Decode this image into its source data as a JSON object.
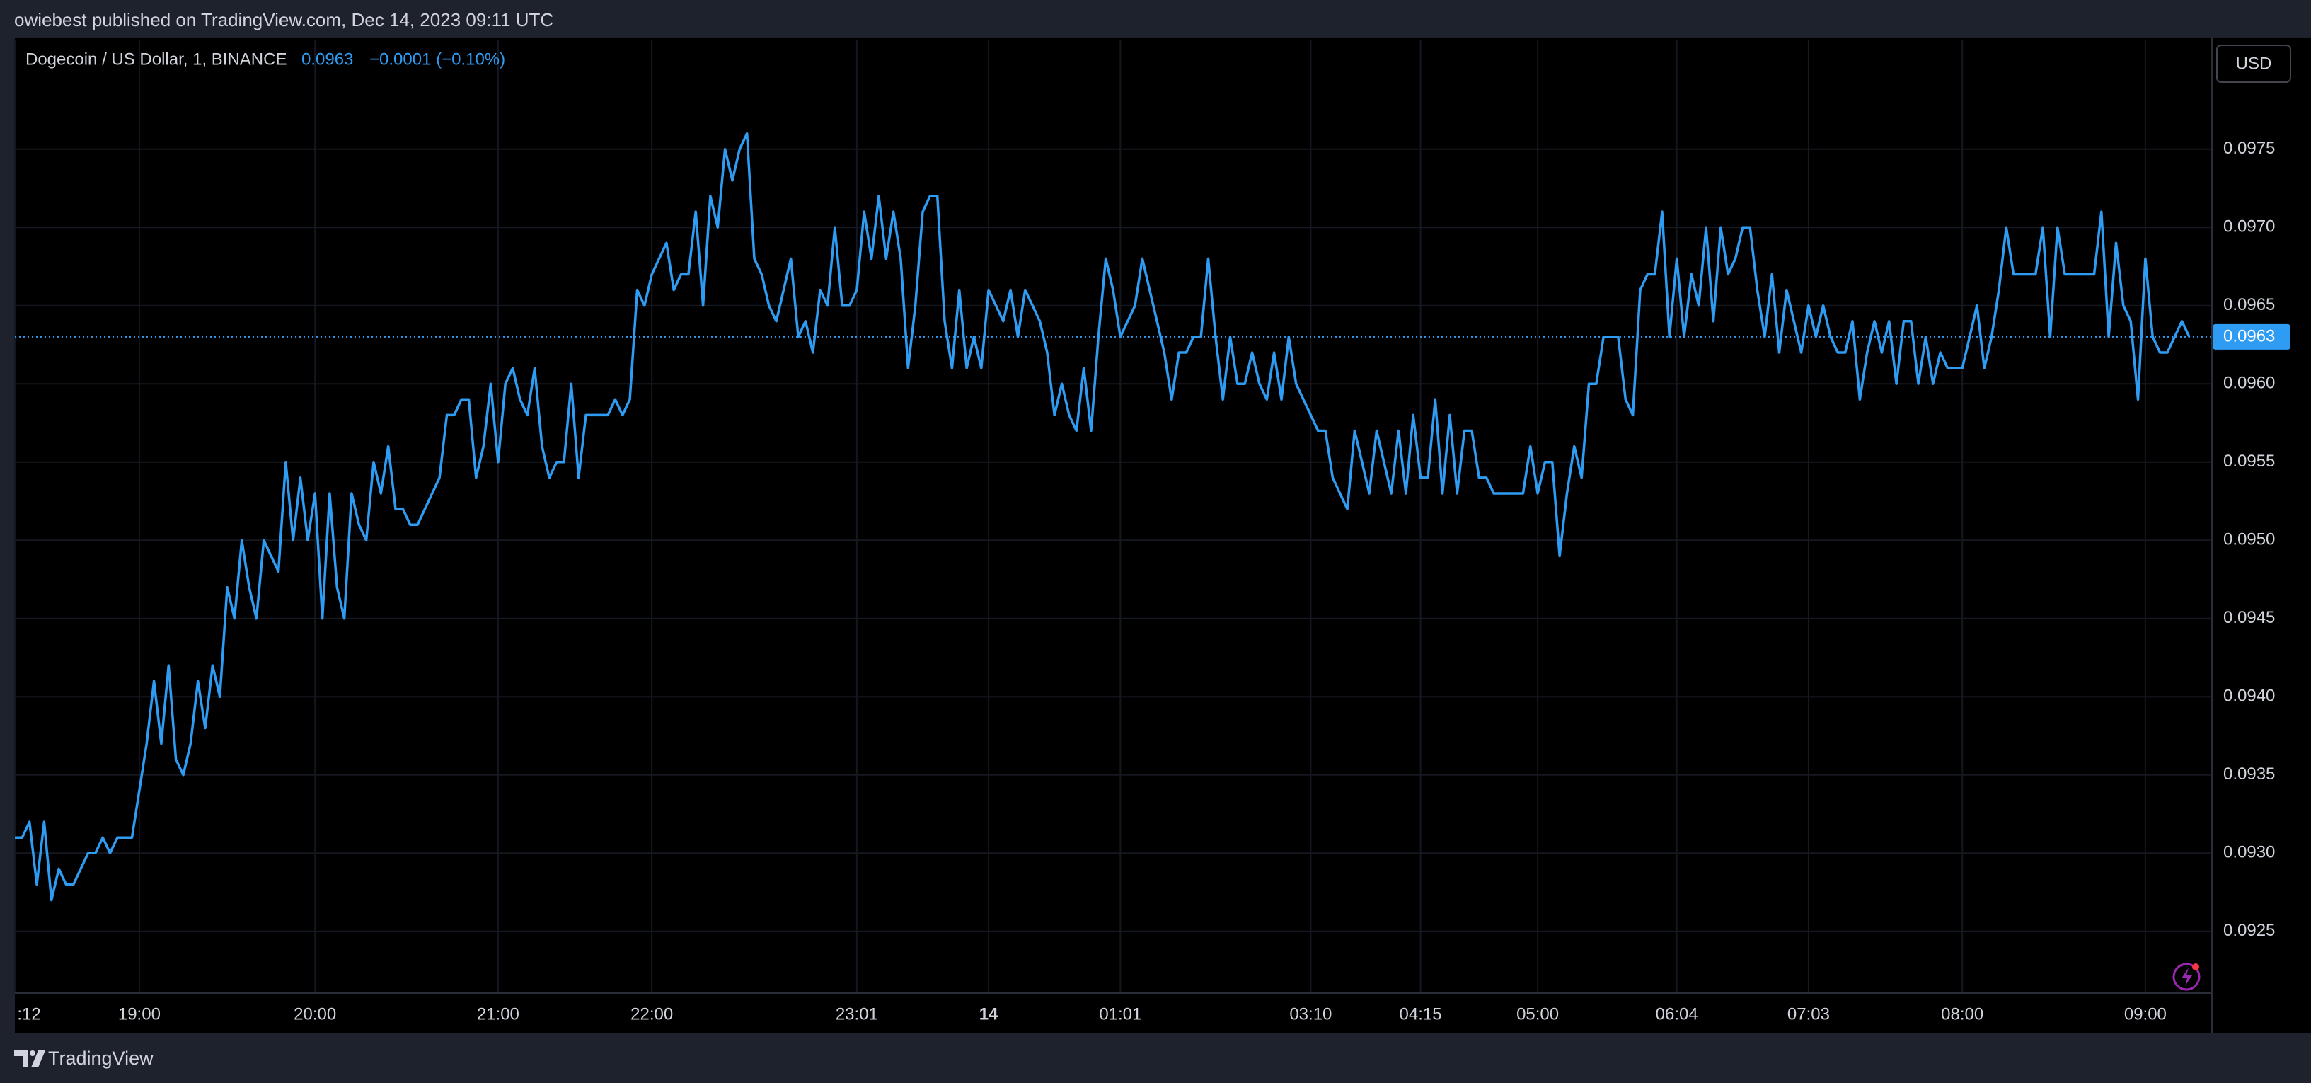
{
  "header": {
    "text": "owiebest published on TradingView.com, Dec 14, 2023 09:11 UTC"
  },
  "footer": {
    "brand": "TradingView"
  },
  "chart_data": {
    "type": "line",
    "title": "Dogecoin / US Dollar, 1, BINANCE",
    "last_price": 0.0963,
    "change": "−0.0001 (−0.10%)",
    "currency": "USD",
    "color": "#2f9cf4",
    "grid": true,
    "ylim": [
      0.09211,
      0.0982
    ],
    "yticks": [
      0.0925,
      {
        "value": 0.093,
        "label": "0.0930"
      },
      0.0935,
      {
        "value": 0.094,
        "label": "0.0940"
      },
      0.0945,
      {
        "value": 0.095,
        "label": "0.0950"
      },
      0.0955,
      {
        "value": 0.096,
        "label": "0.0960"
      },
      0.0965,
      {
        "value": 0.097,
        "label": "0.0970"
      },
      0.0975
    ],
    "xlim": [
      0,
      300
    ],
    "xticks": [
      {
        "value": 0,
        "label": ":12"
      },
      {
        "value": 17,
        "label": "19:00"
      },
      {
        "value": 41,
        "label": "20:00"
      },
      {
        "value": 66,
        "label": "21:00"
      },
      {
        "value": 87,
        "label": "22:00"
      },
      {
        "value": 115,
        "label": "23:01"
      },
      {
        "value": 133,
        "label": "14"
      },
      {
        "value": 151,
        "label": "01:01"
      },
      {
        "value": 177,
        "label": "03:10"
      },
      {
        "value": 192,
        "label": "04:15"
      },
      {
        "value": 208,
        "label": "05:00"
      },
      {
        "value": 227,
        "label": "06:04"
      },
      {
        "value": 245,
        "label": "07:03"
      },
      {
        "value": 266,
        "label": "08:00"
      },
      {
        "value": 291,
        "label": "09:00"
      }
    ],
    "values": [
      0.0931,
      0.0931,
      0.0932,
      0.0928,
      0.0932,
      0.0927,
      0.0929,
      0.0928,
      0.0928,
      0.0929,
      0.093,
      0.093,
      0.0931,
      0.093,
      0.0931,
      0.0931,
      0.0931,
      0.0934,
      0.0937,
      0.0941,
      0.0937,
      0.0942,
      0.0936,
      0.0935,
      0.0937,
      0.0941,
      0.0938,
      0.0942,
      0.094,
      0.0947,
      0.0945,
      0.095,
      0.0947,
      0.0945,
      0.095,
      0.0949,
      0.0948,
      0.0955,
      0.095,
      0.0954,
      0.095,
      0.0953,
      0.0945,
      0.0953,
      0.0947,
      0.0945,
      0.0953,
      0.0951,
      0.095,
      0.0955,
      0.0953,
      0.0956,
      0.0952,
      0.0952,
      0.0951,
      0.0951,
      0.0952,
      0.0953,
      0.0954,
      0.0958,
      0.0958,
      0.0959,
      0.0959,
      0.0954,
      0.0956,
      0.096,
      0.0955,
      0.096,
      0.0961,
      0.0959,
      0.0958,
      0.0961,
      0.0956,
      0.0954,
      0.0955,
      0.0955,
      0.096,
      0.0954,
      0.0958,
      0.0958,
      0.0958,
      0.0958,
      0.0959,
      0.0958,
      0.0959,
      0.0966,
      0.0965,
      0.0967,
      0.0968,
      0.0969,
      0.0966,
      0.0967,
      0.0967,
      0.0971,
      0.0965,
      0.0972,
      0.097,
      0.0975,
      0.0973,
      0.0975,
      0.0976,
      0.0968,
      0.0967,
      0.0965,
      0.0964,
      0.0966,
      0.0968,
      0.0963,
      0.0964,
      0.0962,
      0.0966,
      0.0965,
      0.097,
      0.0965,
      0.0965,
      0.0966,
      0.0971,
      0.0968,
      0.0972,
      0.0968,
      0.0971,
      0.0968,
      0.0961,
      0.0965,
      0.0971,
      0.0972,
      0.0972,
      0.0964,
      0.0961,
      0.0966,
      0.0961,
      0.0963,
      0.0961,
      0.0966,
      0.0965,
      0.0964,
      0.0966,
      0.0963,
      0.0966,
      0.0965,
      0.0964,
      0.0962,
      0.0958,
      0.096,
      0.0958,
      0.0957,
      0.0961,
      0.0957,
      0.0963,
      0.0968,
      0.0966,
      0.0963,
      0.0964,
      0.0965,
      0.0968,
      0.0966,
      0.0964,
      0.0962,
      0.0959,
      0.0962,
      0.0962,
      0.0963,
      0.0963,
      0.0968,
      0.0963,
      0.0959,
      0.0963,
      0.096,
      0.096,
      0.0962,
      0.096,
      0.0959,
      0.0962,
      0.0959,
      0.0963,
      0.096,
      0.0959,
      0.0958,
      0.0957,
      0.0957,
      0.0954,
      0.0953,
      0.0952,
      0.0957,
      0.0955,
      0.0953,
      0.0957,
      0.0955,
      0.0953,
      0.0957,
      0.0953,
      0.0958,
      0.0954,
      0.0954,
      0.0959,
      0.0953,
      0.0958,
      0.0953,
      0.0957,
      0.0957,
      0.0954,
      0.0954,
      0.0953,
      0.0953,
      0.0953,
      0.0953,
      0.0953,
      0.0956,
      0.0953,
      0.0955,
      0.0955,
      0.0949,
      0.0953,
      0.0956,
      0.0954,
      0.096,
      0.096,
      0.0963,
      0.0963,
      0.0963,
      0.0959,
      0.0958,
      0.0966,
      0.0967,
      0.0967,
      0.0971,
      0.0963,
      0.0968,
      0.0963,
      0.0967,
      0.0965,
      0.097,
      0.0964,
      0.097,
      0.0967,
      0.0968,
      0.097,
      0.097,
      0.0966,
      0.0963,
      0.0967,
      0.0962,
      0.0966,
      0.0964,
      0.0962,
      0.0965,
      0.0963,
      0.0965,
      0.0963,
      0.0962,
      0.0962,
      0.0964,
      0.0959,
      0.0962,
      0.0964,
      0.0962,
      0.0964,
      0.096,
      0.0964,
      0.0964,
      0.096,
      0.0963,
      0.096,
      0.0962,
      0.0961,
      0.0961,
      0.0961,
      0.0963,
      0.0965,
      0.0961,
      0.0963,
      0.0966,
      0.097,
      0.0967,
      0.0967,
      0.0967,
      0.0967,
      0.097,
      0.0963,
      0.097,
      0.0967,
      0.0967,
      0.0967,
      0.0967,
      0.0967,
      0.0971,
      0.0963,
      0.0969,
      0.0965,
      0.0964,
      0.0959,
      0.0968,
      0.0963,
      0.0962,
      0.0962,
      0.0963,
      0.0964,
      0.0963
    ]
  }
}
